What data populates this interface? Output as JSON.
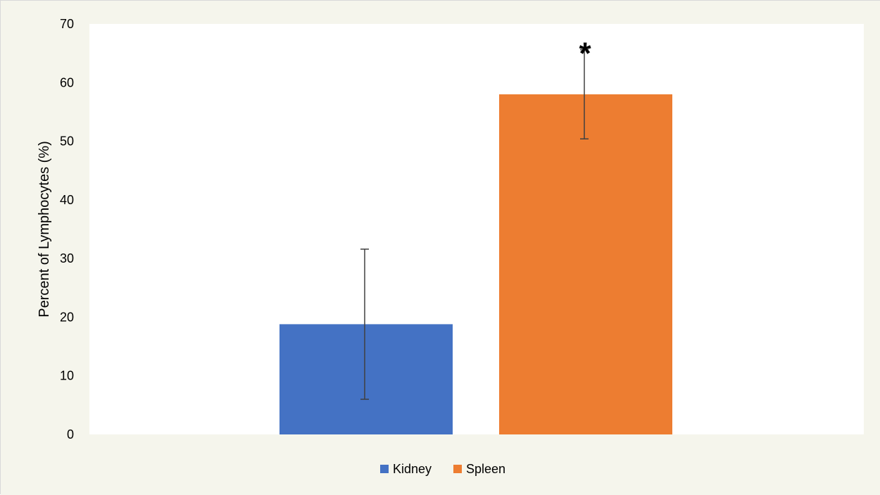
{
  "chart_data": {
    "type": "bar",
    "title": "",
    "xlabel": "",
    "ylabel": "Percent of Lymphocytes (%)",
    "ylim": [
      0,
      70
    ],
    "y_ticks": [
      0,
      10,
      20,
      30,
      40,
      50,
      60,
      70
    ],
    "grid": false,
    "legend_position": "bottom",
    "background": "#f5f5ec",
    "plot_background": "#ffffff",
    "series": [
      {
        "name": "Kidney",
        "value": 18.8,
        "error": 12.8,
        "color": "#4472c4"
      },
      {
        "name": "Spleen",
        "value": 58.0,
        "error": 7.6,
        "color": "#ed7d31"
      }
    ],
    "annotations": [
      {
        "text": "*",
        "series": "Spleen"
      }
    ]
  }
}
